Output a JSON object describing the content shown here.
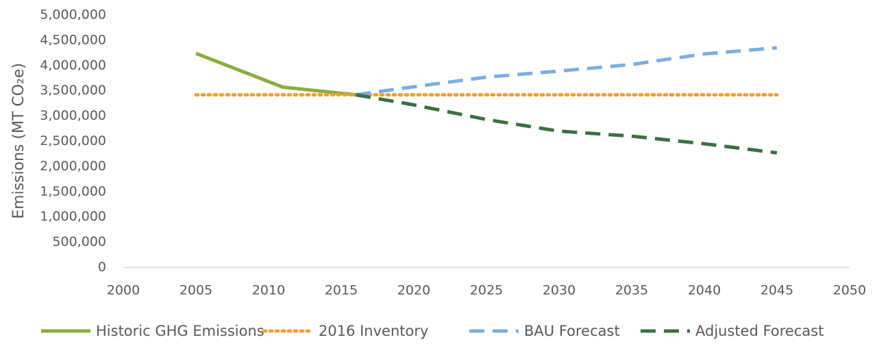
{
  "chart_data": {
    "type": "line",
    "y_label": "Emissions (MT CO₂e)",
    "xlim": [
      2000,
      2050
    ],
    "xticks": [
      2000,
      2005,
      2010,
      2015,
      2020,
      2025,
      2030,
      2035,
      2040,
      2045,
      2050
    ],
    "ylim": [
      0,
      5000000
    ],
    "yticks": [
      0,
      {
        "value": 500000,
        "label": "500,000"
      },
      {
        "value": 1000000,
        "label": "1,000,000"
      },
      {
        "value": 1500000,
        "label": "1,500,000"
      },
      {
        "value": 2000000,
        "label": "2,000,000"
      },
      {
        "value": 2500000,
        "label": "2,500,000"
      },
      {
        "value": 3000000,
        "label": "3,000,000"
      },
      {
        "value": 3500000,
        "label": "3,500,000"
      },
      {
        "value": 4000000,
        "label": "4,000,000"
      },
      {
        "value": 4500000,
        "label": "4,500,000"
      },
      {
        "value": 5000000,
        "label": "5,000,000"
      }
    ],
    "legend": "bottom",
    "series": [
      {
        "name": "Historic GHG Emissions",
        "color": "#8aac3e",
        "dash": "solid",
        "x": [
          2005,
          2011,
          2016
        ],
        "values": [
          4240000,
          3570000,
          3420000
        ]
      },
      {
        "name": "2016 Inventory",
        "color": "#f0a030",
        "dash": "dotted",
        "x": [
          2005,
          2045
        ],
        "values": [
          3420000,
          3420000
        ]
      },
      {
        "name": "BAU Forecast",
        "color": "#7aaee0",
        "dash": "dashed",
        "x": [
          2016,
          2020,
          2025,
          2030,
          2035,
          2040,
          2045
        ],
        "values": [
          3420000,
          3580000,
          3770000,
          3890000,
          4020000,
          4230000,
          4350000
        ]
      },
      {
        "name": "Adjusted Forecast",
        "color": "#3a7040",
        "dash": "dashed",
        "x": [
          2016,
          2020,
          2025,
          2030,
          2035,
          2040,
          2045
        ],
        "values": [
          3420000,
          3220000,
          2930000,
          2700000,
          2600000,
          2450000,
          2270000
        ]
      }
    ]
  }
}
